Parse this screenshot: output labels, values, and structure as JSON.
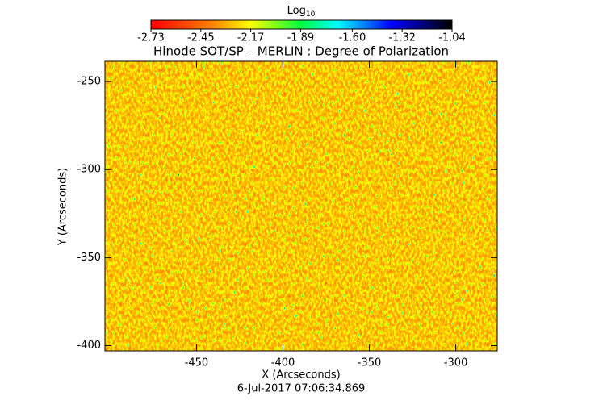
{
  "chart_data": {
    "type": "heatmap",
    "title": "Hinode SOT/SP – MERLIN : Degree of Polarization",
    "x_label": "X (Arcseconds)",
    "y_label": "Y (Arcseconds)",
    "footer": "6-Jul-2017 07:06:34.869",
    "colorbar": {
      "label": "Log",
      "label_subscript": "10",
      "lim": [
        -2.73,
        -1.04
      ],
      "ticks": [
        -2.73,
        -2.45,
        -2.17,
        -1.89,
        {
          "value": -1.6,
          "label": "-1.60"
        },
        -1.32,
        -1.04
      ]
    },
    "xlim": [
      -503,
      -276
    ],
    "xticks": [
      -450,
      -400,
      -350,
      -300
    ],
    "ylim": [
      -403,
      -238.5
    ],
    "yticks": [
      -250,
      -300,
      -350,
      -400
    ]
  }
}
